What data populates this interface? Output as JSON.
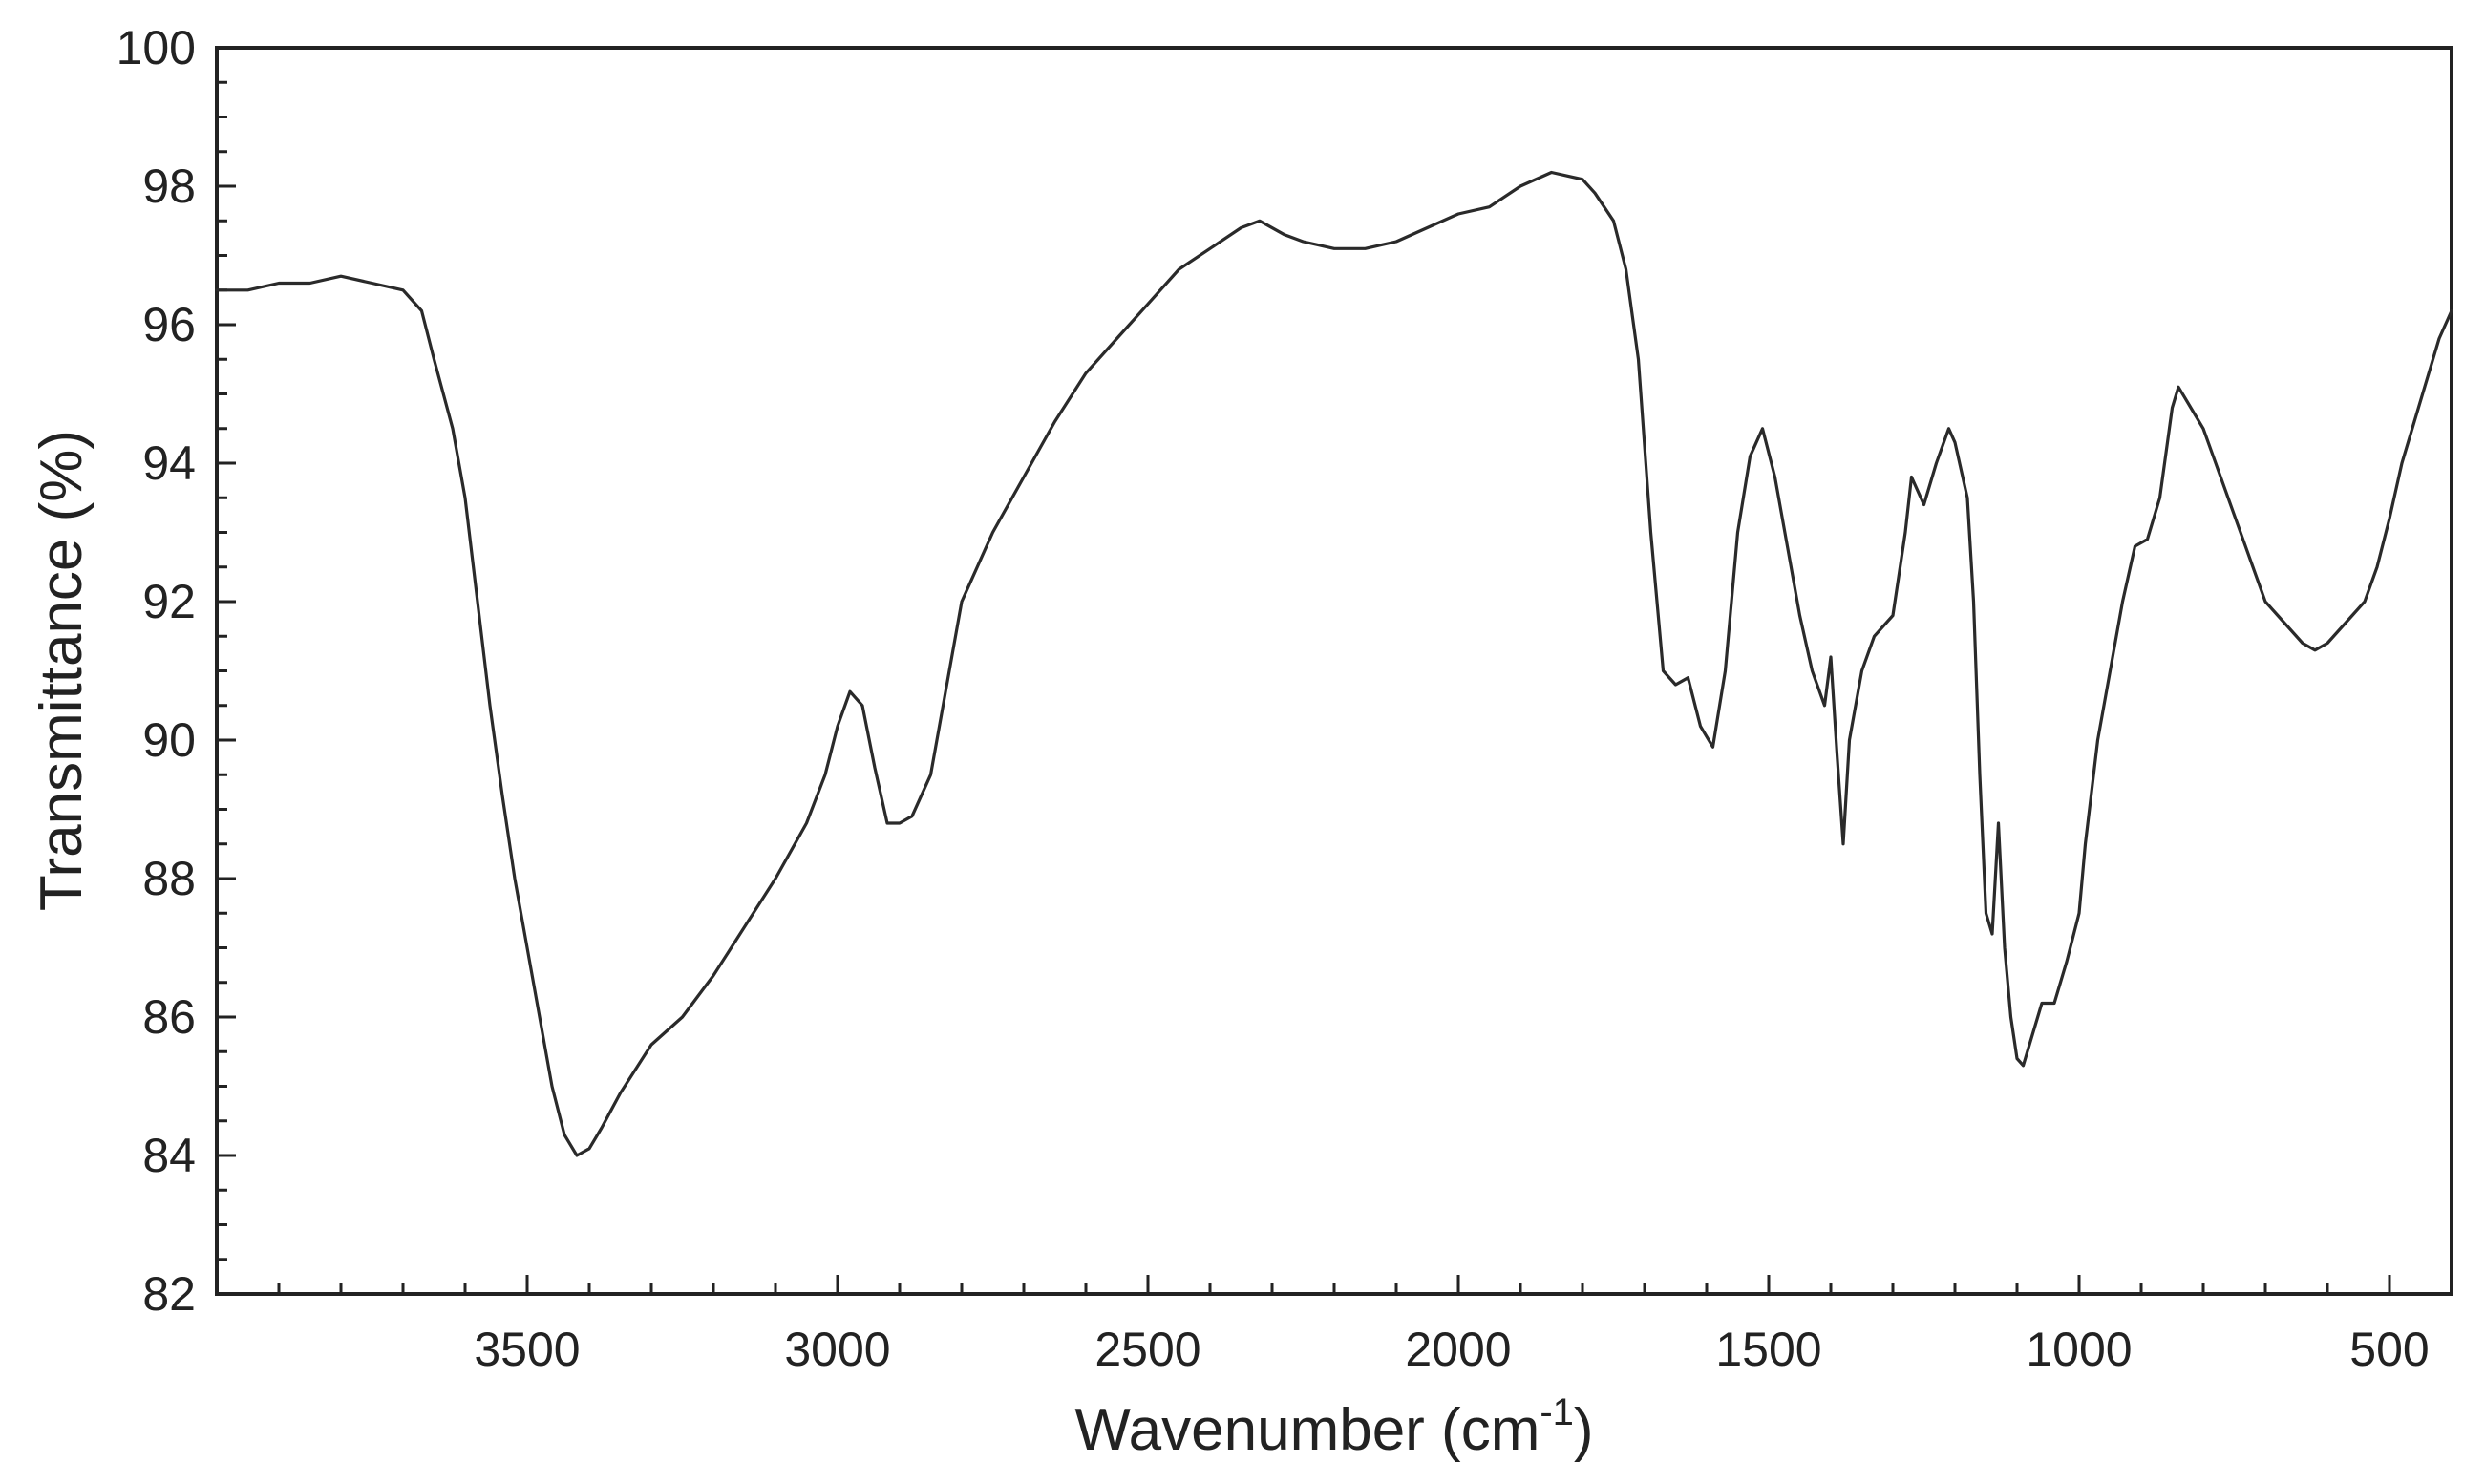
{
  "chart_data": {
    "type": "line",
    "title": "",
    "xlabel": "Wavenumber (cm",
    "xlabel_sup": "-1",
    "xlabel_close": ")",
    "ylabel": "Transmittance (%)",
    "xlim": [
      4000,
      400
    ],
    "ylim": [
      82,
      100
    ],
    "x_reversed": true,
    "xticks": [
      3500,
      3000,
      2500,
      2000,
      1500,
      1000,
      500
    ],
    "yticks": [
      82,
      84,
      86,
      88,
      90,
      92,
      94,
      96,
      98,
      100
    ],
    "grid": false,
    "line_color": "#2a2a2a",
    "series": [
      {
        "points": [
          [
            4000,
            96.5
          ],
          [
            3950,
            96.5
          ],
          [
            3900,
            96.6
          ],
          [
            3850,
            96.6
          ],
          [
            3800,
            96.7
          ],
          [
            3750,
            96.6
          ],
          [
            3700,
            96.5
          ],
          [
            3670,
            96.2
          ],
          [
            3650,
            95.5
          ],
          [
            3620,
            94.5
          ],
          [
            3600,
            93.5
          ],
          [
            3580,
            92.0
          ],
          [
            3560,
            90.5
          ],
          [
            3540,
            89.2
          ],
          [
            3520,
            88.0
          ],
          [
            3500,
            87.0
          ],
          [
            3480,
            86.0
          ],
          [
            3460,
            85.0
          ],
          [
            3440,
            84.3
          ],
          [
            3420,
            84.0
          ],
          [
            3400,
            84.1
          ],
          [
            3380,
            84.4
          ],
          [
            3350,
            84.9
          ],
          [
            3300,
            85.6
          ],
          [
            3250,
            86.0
          ],
          [
            3200,
            86.6
          ],
          [
            3150,
            87.3
          ],
          [
            3100,
            88.0
          ],
          [
            3050,
            88.8
          ],
          [
            3020,
            89.5
          ],
          [
            3000,
            90.2
          ],
          [
            2980,
            90.7
          ],
          [
            2960,
            90.5
          ],
          [
            2940,
            89.6
          ],
          [
            2920,
            88.8
          ],
          [
            2900,
            88.8
          ],
          [
            2880,
            88.9
          ],
          [
            2850,
            89.5
          ],
          [
            2820,
            91.0
          ],
          [
            2800,
            92.0
          ],
          [
            2750,
            93.0
          ],
          [
            2700,
            93.8
          ],
          [
            2650,
            94.6
          ],
          [
            2600,
            95.3
          ],
          [
            2550,
            95.8
          ],
          [
            2500,
            96.3
          ],
          [
            2450,
            96.8
          ],
          [
            2400,
            97.1
          ],
          [
            2350,
            97.4
          ],
          [
            2320,
            97.5
          ],
          [
            2280,
            97.3
          ],
          [
            2250,
            97.2
          ],
          [
            2200,
            97.1
          ],
          [
            2150,
            97.1
          ],
          [
            2100,
            97.2
          ],
          [
            2050,
            97.4
          ],
          [
            2000,
            97.6
          ],
          [
            1950,
            97.7
          ],
          [
            1900,
            98.0
          ],
          [
            1850,
            98.2
          ],
          [
            1800,
            98.1
          ],
          [
            1780,
            97.9
          ],
          [
            1750,
            97.5
          ],
          [
            1730,
            96.8
          ],
          [
            1710,
            95.5
          ],
          [
            1690,
            93.0
          ],
          [
            1670,
            91.0
          ],
          [
            1650,
            90.8
          ],
          [
            1630,
            90.9
          ],
          [
            1610,
            90.2
          ],
          [
            1590,
            89.9
          ],
          [
            1570,
            91.0
          ],
          [
            1550,
            93.0
          ],
          [
            1530,
            94.1
          ],
          [
            1510,
            94.5
          ],
          [
            1490,
            93.8
          ],
          [
            1470,
            92.8
          ],
          [
            1450,
            91.8
          ],
          [
            1430,
            91.0
          ],
          [
            1410,
            90.5
          ],
          [
            1400,
            91.2
          ],
          [
            1390,
            89.8
          ],
          [
            1380,
            88.5
          ],
          [
            1370,
            90.0
          ],
          [
            1350,
            91.0
          ],
          [
            1330,
            91.5
          ],
          [
            1300,
            91.8
          ],
          [
            1280,
            93.0
          ],
          [
            1270,
            93.8
          ],
          [
            1250,
            93.4
          ],
          [
            1230,
            94.0
          ],
          [
            1210,
            94.5
          ],
          [
            1200,
            94.3
          ],
          [
            1180,
            93.5
          ],
          [
            1170,
            92.0
          ],
          [
            1160,
            89.5
          ],
          [
            1150,
            87.5
          ],
          [
            1140,
            87.2
          ],
          [
            1130,
            88.8
          ],
          [
            1120,
            87.0
          ],
          [
            1110,
            86.0
          ],
          [
            1100,
            85.4
          ],
          [
            1090,
            85.3
          ],
          [
            1080,
            85.6
          ],
          [
            1060,
            86.2
          ],
          [
            1040,
            86.2
          ],
          [
            1020,
            86.8
          ],
          [
            1000,
            87.5
          ],
          [
            990,
            88.5
          ],
          [
            970,
            90.0
          ],
          [
            950,
            91.0
          ],
          [
            930,
            92.0
          ],
          [
            910,
            92.8
          ],
          [
            890,
            92.9
          ],
          [
            870,
            93.5
          ],
          [
            850,
            94.8
          ],
          [
            840,
            95.1
          ],
          [
            820,
            94.8
          ],
          [
            800,
            94.5
          ],
          [
            780,
            94.0
          ],
          [
            760,
            93.5
          ],
          [
            740,
            93.0
          ],
          [
            720,
            92.5
          ],
          [
            700,
            92.0
          ],
          [
            680,
            91.8
          ],
          [
            660,
            91.6
          ],
          [
            640,
            91.4
          ],
          [
            620,
            91.3
          ],
          [
            600,
            91.4
          ],
          [
            580,
            91.6
          ],
          [
            560,
            91.8
          ],
          [
            540,
            92.0
          ],
          [
            520,
            92.5
          ],
          [
            500,
            93.2
          ],
          [
            480,
            94.0
          ],
          [
            460,
            94.6
          ],
          [
            440,
            95.2
          ],
          [
            420,
            95.8
          ],
          [
            400,
            96.2
          ]
        ]
      }
    ]
  }
}
